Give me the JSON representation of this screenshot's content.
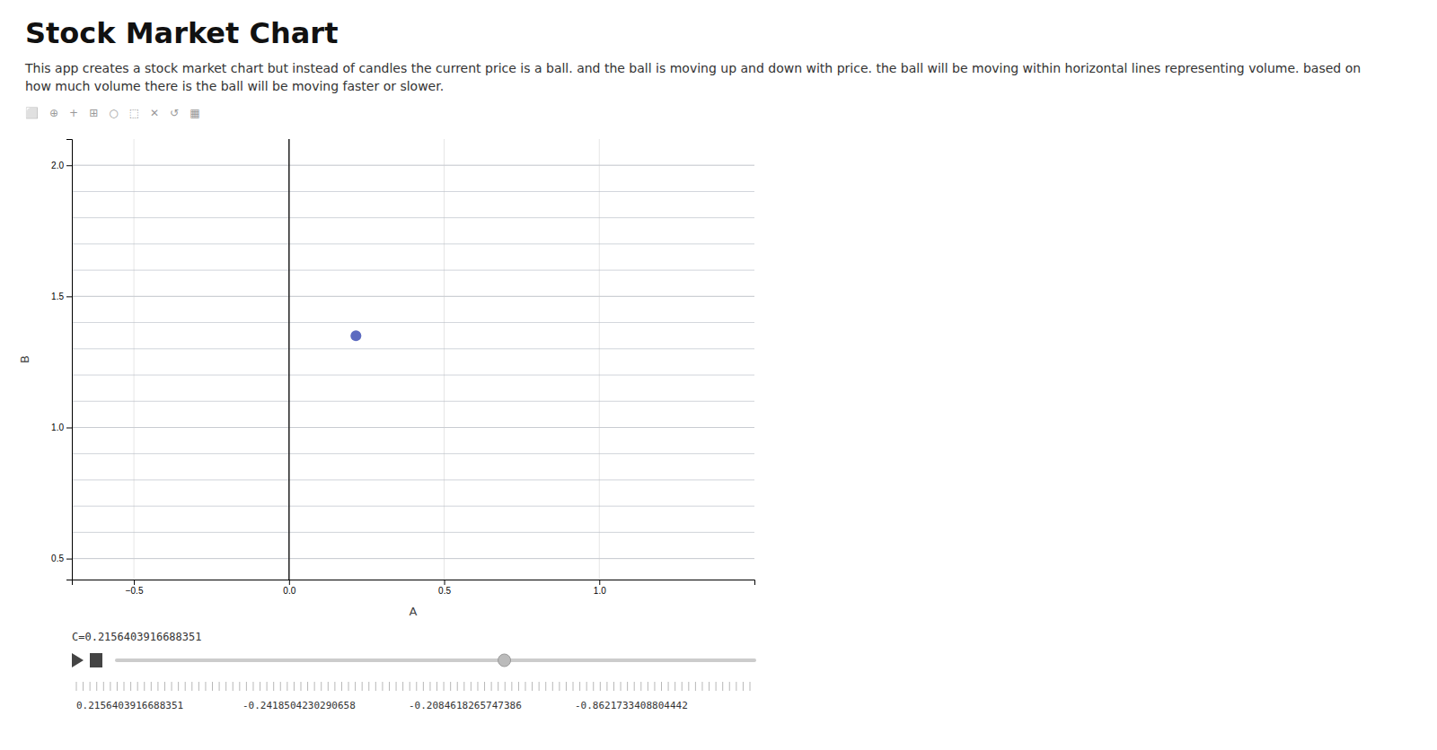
{
  "chart_data": {
    "type": "scatter",
    "title": "Stock Market Chart",
    "subtitle": "This app creates a stock market chart but instead of candles the current price is a ball. and the ball is moving up and down with price. the ball will be moving within horizontal lines representing volume. based on how much volume there is the ball will be moving faster or slower.",
    "x_label": "A",
    "y_label": "B",
    "x": [
      0.2156403916688351
    ],
    "values": [
      1.35
    ],
    "color": "#5c6bc0",
    "xlim": [
      -0.7,
      1.5
    ],
    "ylim": [
      0.42,
      2.1
    ],
    "xticks": [
      {
        "value": -0.5,
        "label": "−0.5"
      },
      {
        "value": 0.0,
        "label": "0.0"
      },
      {
        "value": 0.5,
        "label": "0.5"
      },
      {
        "value": 1.0,
        "label": "1.0"
      }
    ],
    "yticks": [
      {
        "value": 0.5,
        "label": "0.5"
      },
      {
        "value": 1.0,
        "label": "1.0"
      },
      {
        "value": 1.5,
        "label": "1.5"
      },
      {
        "value": 2.0,
        "label": "2.0"
      }
    ],
    "grid": true,
    "hlines": [
      0.5,
      0.6,
      0.7,
      0.8,
      0.9,
      1.0,
      1.1,
      1.2,
      1.3,
      1.4,
      1.5,
      1.6,
      1.7,
      1.8,
      1.9,
      2.0
    ],
    "vline": 0.0,
    "slider": {
      "label": "C=0.2156403916688351",
      "value": 0.2156403916688351,
      "range": [
        -1.0,
        1.0
      ],
      "values": [
        0.2156403916688351,
        -0.2418504230290658,
        -0.2084618265747386,
        -0.8621733408804442
      ]
    },
    "icons": [
      "⬜",
      "⊕",
      "+",
      "⊞",
      "○",
      "⬚",
      "✕",
      "↺",
      "▦"
    ]
  }
}
